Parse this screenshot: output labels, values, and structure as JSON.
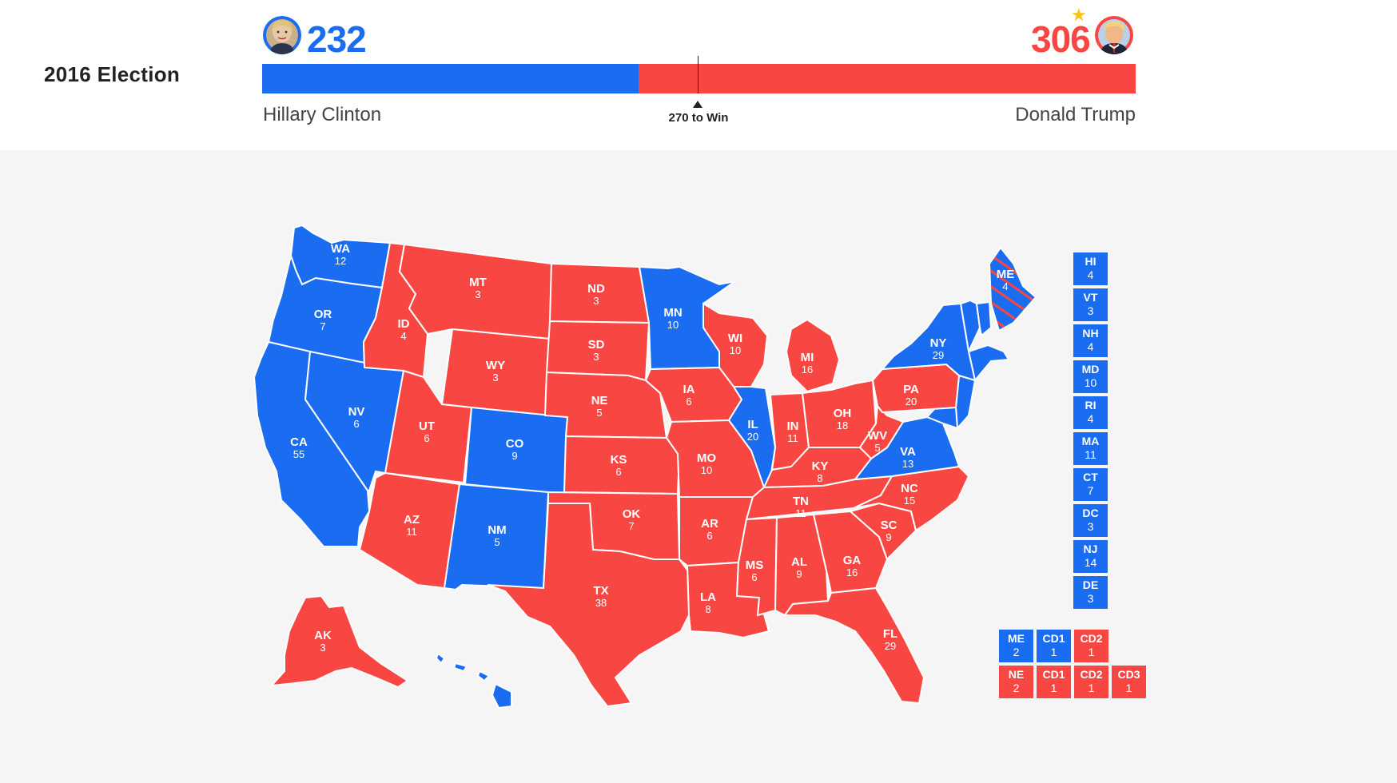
{
  "title": "2016 Election",
  "colors": {
    "dem": "#1a6cf0",
    "rep": "#f84743",
    "star": "#f5c518"
  },
  "dem": {
    "name": "Hillary Clinton",
    "electoral_votes": "232",
    "avatar_icon": "hillary-clinton-portrait-icon"
  },
  "rep": {
    "name": "Donald Trump",
    "electoral_votes": "306",
    "avatar_icon": "donald-trump-portrait-icon",
    "winner_icon": "star-icon"
  },
  "win_threshold_label": "270 to Win",
  "bar": {
    "dem_share": 232,
    "rep_share": 306,
    "total": 538,
    "threshold": 270
  },
  "states": [
    {
      "abbr": "WA",
      "ev": "12",
      "party": "dem"
    },
    {
      "abbr": "OR",
      "ev": "7",
      "party": "dem"
    },
    {
      "abbr": "CA",
      "ev": "55",
      "party": "dem"
    },
    {
      "abbr": "NV",
      "ev": "6",
      "party": "dem"
    },
    {
      "abbr": "ID",
      "ev": "4",
      "party": "rep"
    },
    {
      "abbr": "MT",
      "ev": "3",
      "party": "rep"
    },
    {
      "abbr": "WY",
      "ev": "3",
      "party": "rep"
    },
    {
      "abbr": "UT",
      "ev": "6",
      "party": "rep"
    },
    {
      "abbr": "CO",
      "ev": "9",
      "party": "dem"
    },
    {
      "abbr": "AZ",
      "ev": "11",
      "party": "rep"
    },
    {
      "abbr": "NM",
      "ev": "5",
      "party": "dem"
    },
    {
      "abbr": "ND",
      "ev": "3",
      "party": "rep"
    },
    {
      "abbr": "SD",
      "ev": "3",
      "party": "rep"
    },
    {
      "abbr": "NE",
      "ev": "5",
      "party": "rep"
    },
    {
      "abbr": "KS",
      "ev": "6",
      "party": "rep"
    },
    {
      "abbr": "OK",
      "ev": "7",
      "party": "rep"
    },
    {
      "abbr": "TX",
      "ev": "38",
      "party": "rep"
    },
    {
      "abbr": "MN",
      "ev": "10",
      "party": "dem"
    },
    {
      "abbr": "IA",
      "ev": "6",
      "party": "rep"
    },
    {
      "abbr": "MO",
      "ev": "10",
      "party": "rep"
    },
    {
      "abbr": "AR",
      "ev": "6",
      "party": "rep"
    },
    {
      "abbr": "LA",
      "ev": "8",
      "party": "rep"
    },
    {
      "abbr": "WI",
      "ev": "10",
      "party": "rep"
    },
    {
      "abbr": "IL",
      "ev": "20",
      "party": "dem"
    },
    {
      "abbr": "MI",
      "ev": "16",
      "party": "rep"
    },
    {
      "abbr": "IN",
      "ev": "11",
      "party": "rep"
    },
    {
      "abbr": "OH",
      "ev": "18",
      "party": "rep"
    },
    {
      "abbr": "KY",
      "ev": "8",
      "party": "rep"
    },
    {
      "abbr": "TN",
      "ev": "11",
      "party": "rep"
    },
    {
      "abbr": "MS",
      "ev": "6",
      "party": "rep"
    },
    {
      "abbr": "AL",
      "ev": "9",
      "party": "rep"
    },
    {
      "abbr": "GA",
      "ev": "16",
      "party": "rep"
    },
    {
      "abbr": "FL",
      "ev": "29",
      "party": "rep"
    },
    {
      "abbr": "SC",
      "ev": "9",
      "party": "rep"
    },
    {
      "abbr": "NC",
      "ev": "15",
      "party": "rep"
    },
    {
      "abbr": "VA",
      "ev": "13",
      "party": "dem"
    },
    {
      "abbr": "WV",
      "ev": "5",
      "party": "rep"
    },
    {
      "abbr": "PA",
      "ev": "20",
      "party": "rep"
    },
    {
      "abbr": "NY",
      "ev": "29",
      "party": "dem"
    },
    {
      "abbr": "ME",
      "ev": "4",
      "party": "dem"
    },
    {
      "abbr": "AK",
      "ev": "3",
      "party": "rep"
    }
  ],
  "small_states": [
    {
      "abbr": "HI",
      "ev": "4",
      "party": "dem"
    },
    {
      "abbr": "VT",
      "ev": "3",
      "party": "dem"
    },
    {
      "abbr": "NH",
      "ev": "4",
      "party": "dem"
    },
    {
      "abbr": "MD",
      "ev": "10",
      "party": "dem"
    },
    {
      "abbr": "RI",
      "ev": "4",
      "party": "dem"
    },
    {
      "abbr": "MA",
      "ev": "11",
      "party": "dem"
    },
    {
      "abbr": "CT",
      "ev": "7",
      "party": "dem"
    },
    {
      "abbr": "DC",
      "ev": "3",
      "party": "dem"
    },
    {
      "abbr": "NJ",
      "ev": "14",
      "party": "dem"
    },
    {
      "abbr": "DE",
      "ev": "3",
      "party": "dem"
    }
  ],
  "split_states": [
    {
      "state": "ME",
      "districts": [
        {
          "abbr": "ME",
          "ev": "2",
          "party": "dem"
        },
        {
          "abbr": "CD1",
          "ev": "1",
          "party": "dem"
        },
        {
          "abbr": "CD2",
          "ev": "1",
          "party": "rep"
        }
      ]
    },
    {
      "state": "NE",
      "districts": [
        {
          "abbr": "NE",
          "ev": "2",
          "party": "rep"
        },
        {
          "abbr": "CD1",
          "ev": "1",
          "party": "rep"
        },
        {
          "abbr": "CD2",
          "ev": "1",
          "party": "rep"
        },
        {
          "abbr": "CD3",
          "ev": "1",
          "party": "rep"
        }
      ]
    }
  ]
}
